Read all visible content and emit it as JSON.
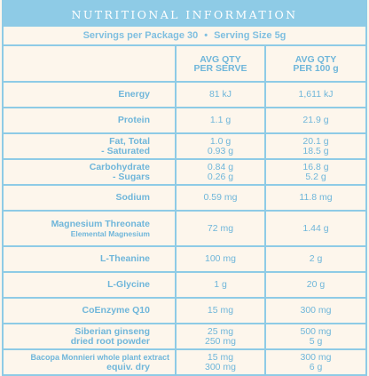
{
  "title": "NUTRITIONAL INFORMATION",
  "servings": {
    "per_package": "Servings per Package 30",
    "separator": "•",
    "serving_size": "Serving Size 5g"
  },
  "columns": {
    "per_serve": [
      "AVG QTY",
      "PER SERVE"
    ],
    "per_100g": [
      "AVG QTY",
      "PER 100 g"
    ]
  },
  "rows": [
    {
      "name": [
        "Energy"
      ],
      "per_serve": [
        "81 kJ"
      ],
      "per_100g": [
        "1,611 kJ"
      ]
    },
    {
      "name": [
        "Protein"
      ],
      "per_serve": [
        "1.1 g"
      ],
      "per_100g": [
        "21.9 g"
      ]
    },
    {
      "name": [
        "Fat, Total",
        "- Saturated"
      ],
      "per_serve": [
        "1.0 g",
        "0.93 g"
      ],
      "per_100g": [
        "20.1 g",
        "18.5 g"
      ]
    },
    {
      "name": [
        "Carbohydrate",
        "- Sugars"
      ],
      "per_serve": [
        "0.84 g",
        "0.26 g"
      ],
      "per_100g": [
        "16.8 g",
        "5.2 g"
      ]
    },
    {
      "name": [
        "Sodium"
      ],
      "per_serve": [
        "0.59 mg"
      ],
      "per_100g": [
        "11.8 mg"
      ]
    },
    {
      "name": [
        "Magnesium Threonate"
      ],
      "sub": "Elemental Magnesium",
      "per_serve": [
        "72 mg"
      ],
      "per_100g": [
        "1.44 g"
      ]
    },
    {
      "name": [
        "L-Theanine"
      ],
      "per_serve": [
        "100 mg"
      ],
      "per_100g": [
        "2 g"
      ]
    },
    {
      "name": [
        "L-Glycine"
      ],
      "per_serve": [
        "1 g"
      ],
      "per_100g": [
        "20 g"
      ]
    },
    {
      "name": [
        "CoEnzyme Q10"
      ],
      "per_serve": [
        "15 mg"
      ],
      "per_100g": [
        "300 mg"
      ]
    },
    {
      "name": [
        "Siberian ginseng",
        "dried root powder"
      ],
      "per_serve": [
        "25 mg",
        "250 mg"
      ],
      "per_100g": [
        "500 mg",
        "5 g"
      ]
    },
    {
      "name": [
        "Bacopa Monnieri whole plant extract",
        "equiv. dry"
      ],
      "per_serve": [
        "15 mg",
        "300 mg"
      ],
      "per_100g": [
        "300 mg",
        "6 g"
      ]
    }
  ],
  "colors": {
    "accent": "#8ecbe6",
    "text": "#6fb6da",
    "background": "#fdf6ec"
  }
}
